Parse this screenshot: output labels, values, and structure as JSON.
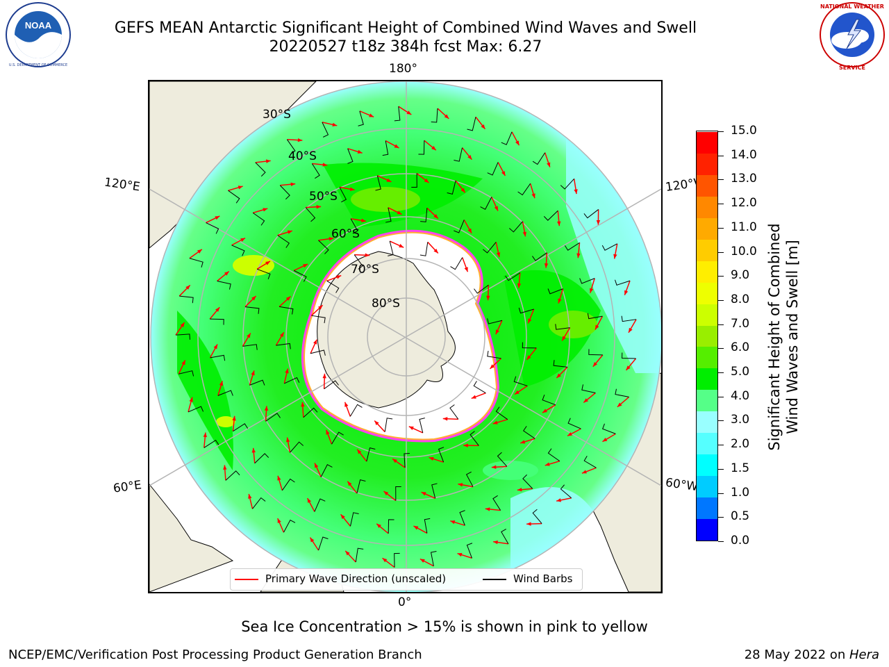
{
  "title": {
    "line1": "GEFS MEAN Antarctic Significant Height of Combined Wind Waves and Swell",
    "line2": "20220527 t18z 384h fcst   Max: 6.27"
  },
  "logos": {
    "left": "NOAA",
    "left_ring_text": "NATIONAL OCEANIC AND ATMOSPHERIC ADMINISTRATION · U.S. DEPARTMENT OF COMMERCE",
    "right_ring_text": "NATIONAL WEATHER SERVICE"
  },
  "map": {
    "lon_labels": {
      "top": "180°",
      "upper_left": "120°E",
      "upper_right": "120°W",
      "lower_left": "60°E",
      "lower_right": "60°W",
      "bottom": "0°"
    },
    "lat_labels": [
      "30°S",
      "40°S",
      "50°S",
      "60°S",
      "70°S",
      "80°S"
    ],
    "colors": {
      "land": "#eeecdd",
      "ice": "#ffffff",
      "grid": "#b4b4b4",
      "arrow": "#ff0000",
      "barb": "#000000",
      "ice_edge_pink": "#ff44ee",
      "ice_edge_orange": "#ffb030"
    }
  },
  "colorbar": {
    "title_line1": "Significant Height of Combined",
    "title_line2": "Wind Waves and Swell [m]",
    "ticks": [
      "15.0",
      "14.0",
      "13.0",
      "12.0",
      "11.0",
      "10.0",
      "9.0",
      "8.0",
      "7.0",
      "6.0",
      "5.0",
      "4.0",
      "3.0",
      "2.0",
      "1.5",
      "1.0",
      "0.5",
      "0.0"
    ],
    "colors_bottom_to_top": [
      "#0000ff",
      "#0077ff",
      "#00ccff",
      "#00ffff",
      "#55ffff",
      "#99ffff",
      "#55ff88",
      "#00ee00",
      "#55ee00",
      "#99ee00",
      "#ccff00",
      "#eeff00",
      "#ffee00",
      "#ffcc00",
      "#ffaa00",
      "#ff8800",
      "#ff5500",
      "#ff2200",
      "#ff0000"
    ]
  },
  "legend": {
    "arrow_label": "Primary Wave Direction (unscaled)",
    "barb_label": "Wind Barbs"
  },
  "note": "Sea Ice Concentration > 15% is shown in pink to yellow",
  "footer": {
    "left": "NCEP/EMC/Verification Post Processing Product Generation Branch",
    "date": "28 May 2022 on ",
    "host": "Hera"
  }
}
